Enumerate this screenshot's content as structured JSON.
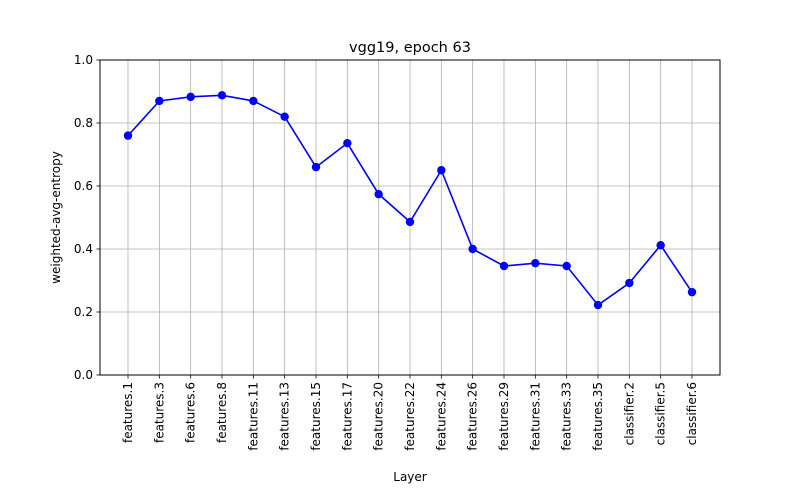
{
  "chart_data": {
    "type": "line",
    "title": "vgg19, epoch 63",
    "xlabel": "Layer",
    "ylabel": "weighted-avg-entropy",
    "ylim": [
      0.0,
      1.0
    ],
    "yticks": [
      "0.0",
      "0.2",
      "0.4",
      "0.6",
      "0.8",
      "1.0"
    ],
    "grid": true,
    "categories": [
      "features.1",
      "features.3",
      "features.6",
      "features.8",
      "features.11",
      "features.13",
      "features.15",
      "features.17",
      "features.20",
      "features.22",
      "features.24",
      "features.26",
      "features.29",
      "features.31",
      "features.33",
      "features.35",
      "classifier.2",
      "classifier.5",
      "classifier.6"
    ],
    "series": [
      {
        "color": "#0000ff",
        "marker": "circle",
        "values": [
          0.76,
          0.87,
          0.883,
          0.888,
          0.87,
          0.82,
          0.66,
          0.736,
          0.574,
          0.486,
          0.65,
          0.4,
          0.346,
          0.355,
          0.346,
          0.222,
          0.292,
          0.412,
          0.263
        ]
      }
    ]
  }
}
